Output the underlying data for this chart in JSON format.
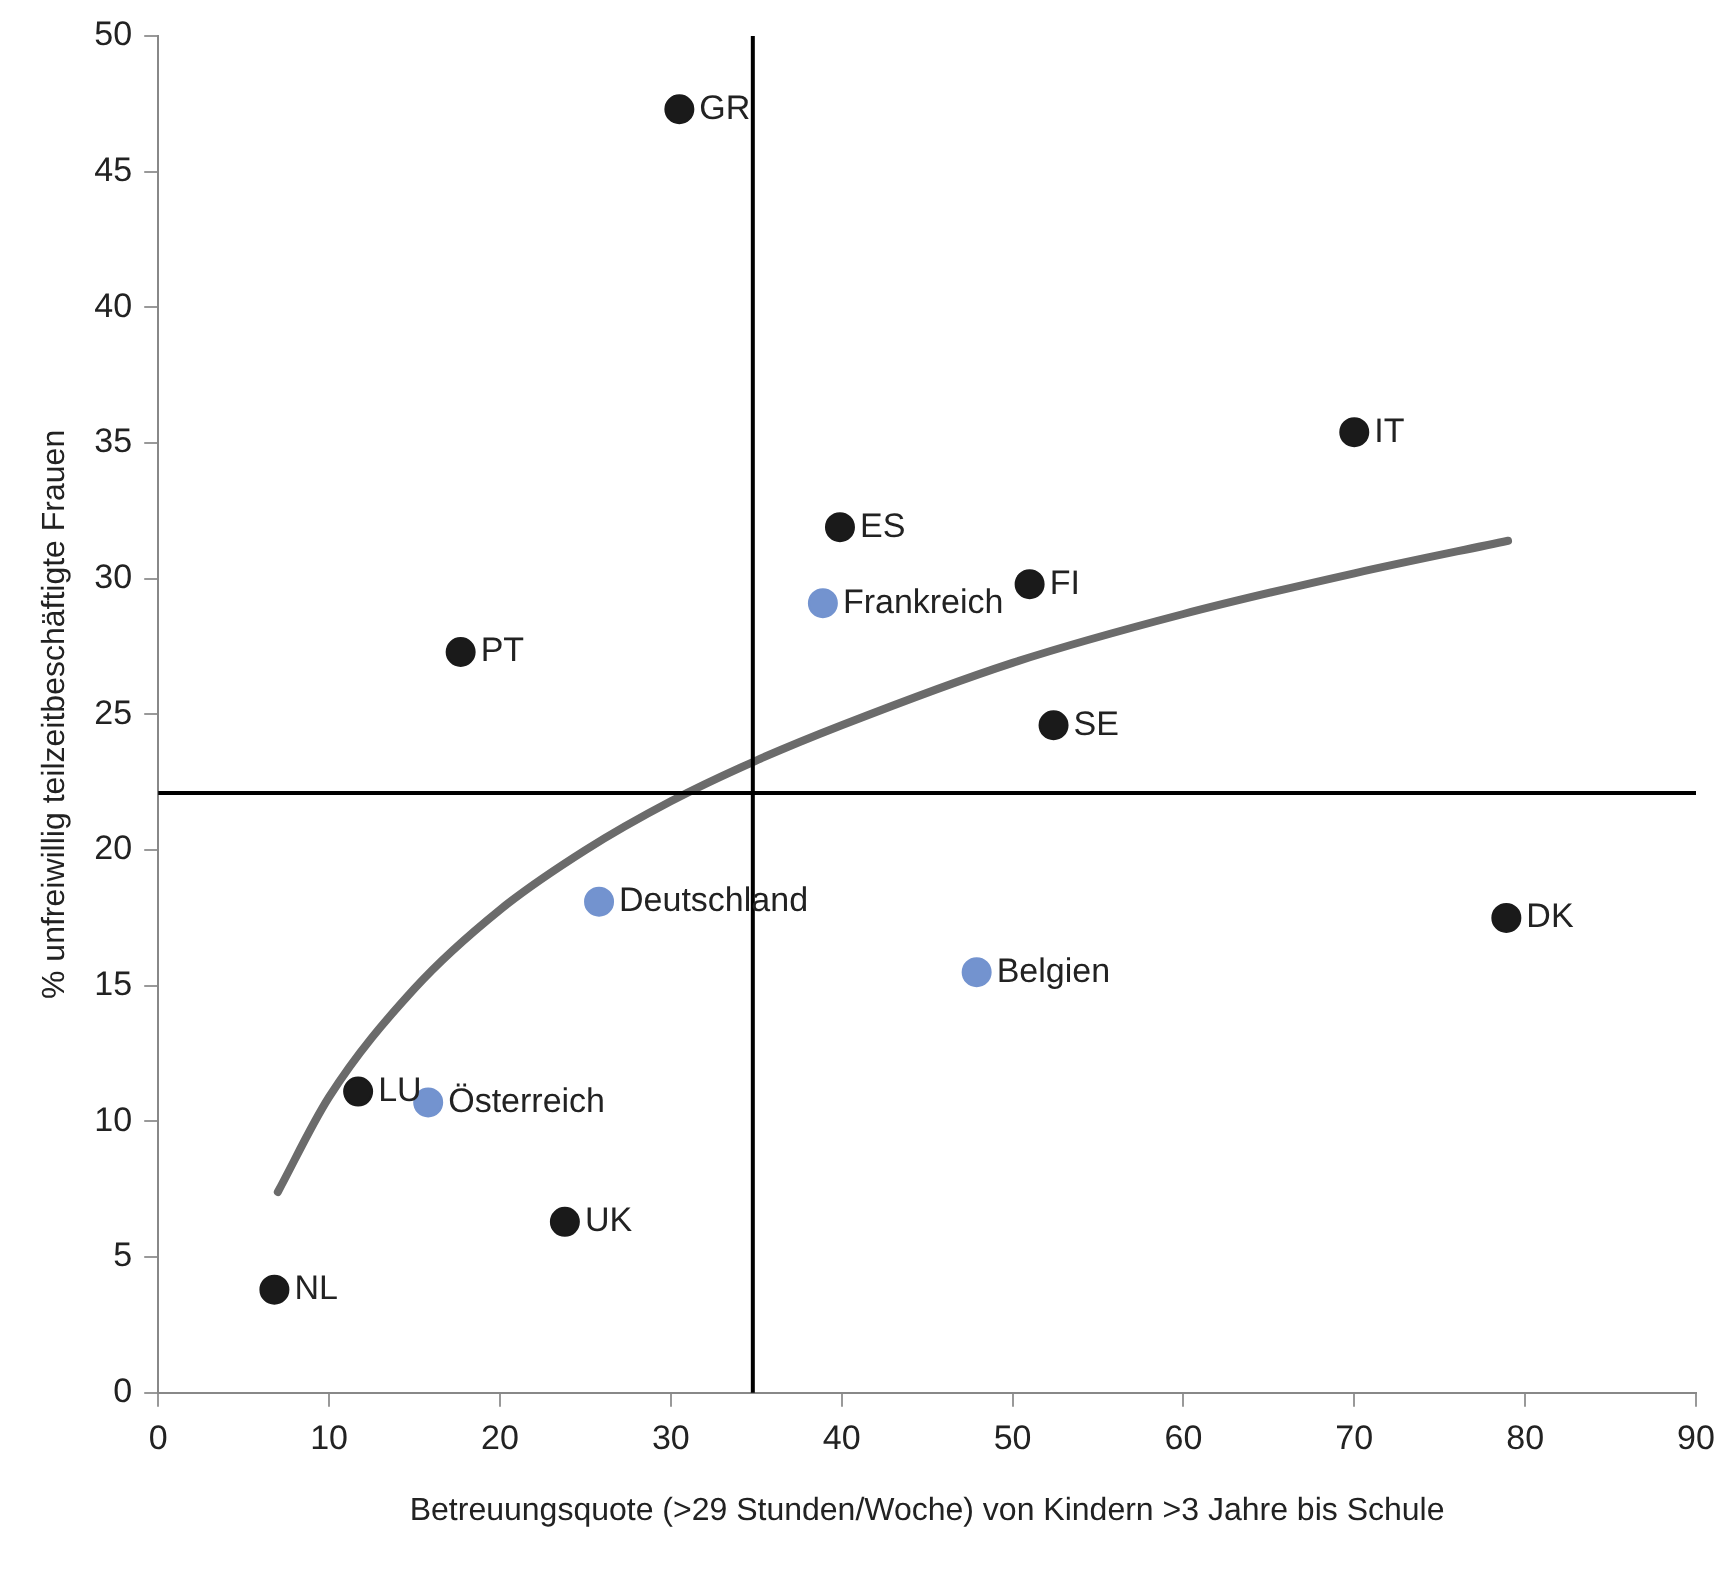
{
  "chart_data": {
    "type": "scatter",
    "xlabel": "Betreuungsquote (>29 Stunden/Woche) von Kindern >3 Jahre bis Schule",
    "ylabel": "% unfreiwillig teilzeitbeschäftigte Frauen",
    "xlim": [
      0,
      90
    ],
    "xticks": [
      0,
      10,
      20,
      30,
      40,
      50,
      60,
      70,
      80,
      90
    ],
    "ylim": [
      0,
      50
    ],
    "yticks": [
      0,
      5,
      10,
      15,
      20,
      25,
      30,
      35,
      40,
      45,
      50
    ],
    "grid": false,
    "legend": false,
    "marker": "circle",
    "series": [
      {
        "color": "#1a1a1a",
        "x": [
          30.5,
          70,
          39.9,
          51,
          17.7,
          52.4,
          78.9,
          11.7,
          23.8,
          6.8
        ],
        "values": [
          47.3,
          35.4,
          31.9,
          29.8,
          27.3,
          24.6,
          17.5,
          11.1,
          6.3,
          3.8
        ]
      },
      {
        "color": "#7393cf",
        "x": [
          38.9,
          25.8,
          47.9,
          15.8
        ],
        "values": [
          29.1,
          18.1,
          15.5,
          10.7
        ]
      },
      {
        "type": "line",
        "color": "#6b6b6b",
        "marker": "none",
        "x": [
          7,
          10,
          15,
          20,
          25,
          30,
          35,
          40,
          50,
          60,
          70,
          79
        ],
        "values": [
          7.4,
          10.9,
          14.9,
          17.8,
          20.0,
          21.8,
          23.3,
          24.6,
          26.9,
          28.7,
          30.2,
          31.4
        ]
      }
    ],
    "ref_lines": [
      {
        "axis": "x",
        "value": 34.8,
        "color": "#000000"
      },
      {
        "axis": "y",
        "value": 22.1,
        "color": "#000000"
      }
    ],
    "annotations": [
      {
        "text": "GR",
        "x": 30.5,
        "y": 47.3
      },
      {
        "text": "IT",
        "x": 70,
        "y": 35.4
      },
      {
        "text": "ES",
        "x": 39.9,
        "y": 31.9
      },
      {
        "text": "FI",
        "x": 51,
        "y": 29.8
      },
      {
        "text": "PT",
        "x": 17.7,
        "y": 27.3
      },
      {
        "text": "SE",
        "x": 52.4,
        "y": 24.6
      },
      {
        "text": "DK",
        "x": 78.9,
        "y": 17.5
      },
      {
        "text": "LU",
        "x": 11.7,
        "y": 11.1
      },
      {
        "text": "UK",
        "x": 23.8,
        "y": 6.3
      },
      {
        "text": "NL",
        "x": 6.8,
        "y": 3.8
      },
      {
        "text": "Frankreich",
        "x": 38.9,
        "y": 29.1
      },
      {
        "text": "Deutschland",
        "x": 25.8,
        "y": 18.1
      },
      {
        "text": "Belgien",
        "x": 47.9,
        "y": 15.5
      },
      {
        "text": "Österreich",
        "x": 15.8,
        "y": 10.7
      }
    ]
  }
}
